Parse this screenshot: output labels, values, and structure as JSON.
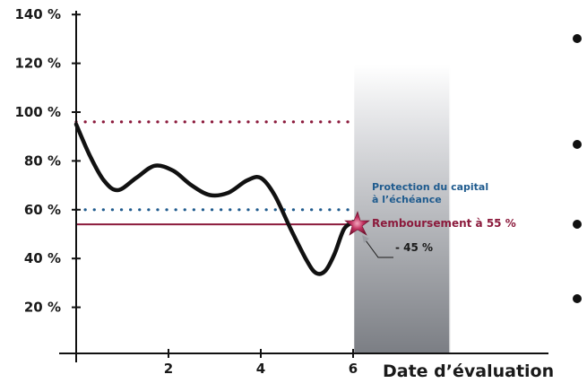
{
  "chart_data": {
    "type": "line",
    "xlabel": "Date d’évaluation",
    "ylabel": "",
    "xlim": [
      0,
      7
    ],
    "ylim": [
      0,
      150
    ],
    "x_ticks": [
      2,
      4,
      6
    ],
    "x_tick_labels": [
      "2",
      "4",
      "6"
    ],
    "y_ticks": [
      20,
      40,
      60,
      80,
      100,
      120,
      140
    ],
    "y_tick_labels": [
      "20 %",
      "40 %",
      "60 %",
      "80 %",
      "100 %",
      "120 %",
      "140 %"
    ],
    "series": [
      {
        "color": "#111111",
        "x": [
          0,
          0.3,
          0.6,
          0.9,
          1.3,
          1.7,
          2.1,
          2.5,
          2.9,
          3.3,
          3.7,
          4.0,
          4.3,
          4.65,
          5.0,
          5.2,
          5.4,
          5.6,
          5.8,
          6.0
        ],
        "y": [
          95,
          82,
          72,
          68,
          73,
          78,
          76,
          70,
          66,
          67,
          72,
          73,
          66,
          52,
          39,
          34,
          35,
          42,
          52,
          55
        ]
      }
    ],
    "reference_lines": [
      {
        "value": 96,
        "style": "dotted",
        "color": "#8b1a3c"
      },
      {
        "value": 60,
        "style": "dotted",
        "color": "#1f5b8e"
      },
      {
        "value": 54,
        "style": "solid",
        "color": "#8b1a3c"
      }
    ],
    "shaded_region": {
      "x_from": 6,
      "x_to": 8.1
    },
    "annotations": {
      "protection_line1": "Protection du capital",
      "protection_line2": "à l’échéance",
      "remboursement": "Remboursement à 55 %",
      "drop": "- 45 %"
    },
    "grid": false
  }
}
